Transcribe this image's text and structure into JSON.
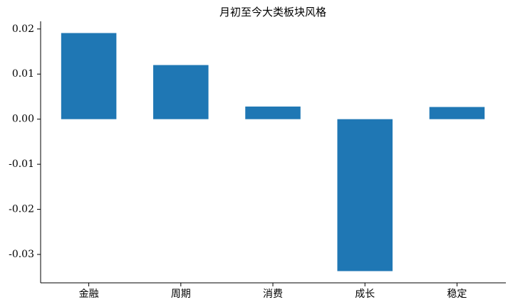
{
  "chart_data": {
    "type": "bar",
    "title": "月初至今大类板块风格",
    "categories": [
      "金融",
      "周期",
      "消费",
      "成长",
      "稳定"
    ],
    "values": [
      0.0191,
      0.012,
      0.0028,
      -0.0337,
      0.0027
    ],
    "color": "#1f77b4",
    "ylim": [
      -0.0363,
      0.0217
    ],
    "yticks": [
      0.02,
      0.01,
      {
        "value": 0,
        "label": "0.00"
      },
      -0.01,
      -0.02,
      -0.03
    ],
    "grid": false
  }
}
